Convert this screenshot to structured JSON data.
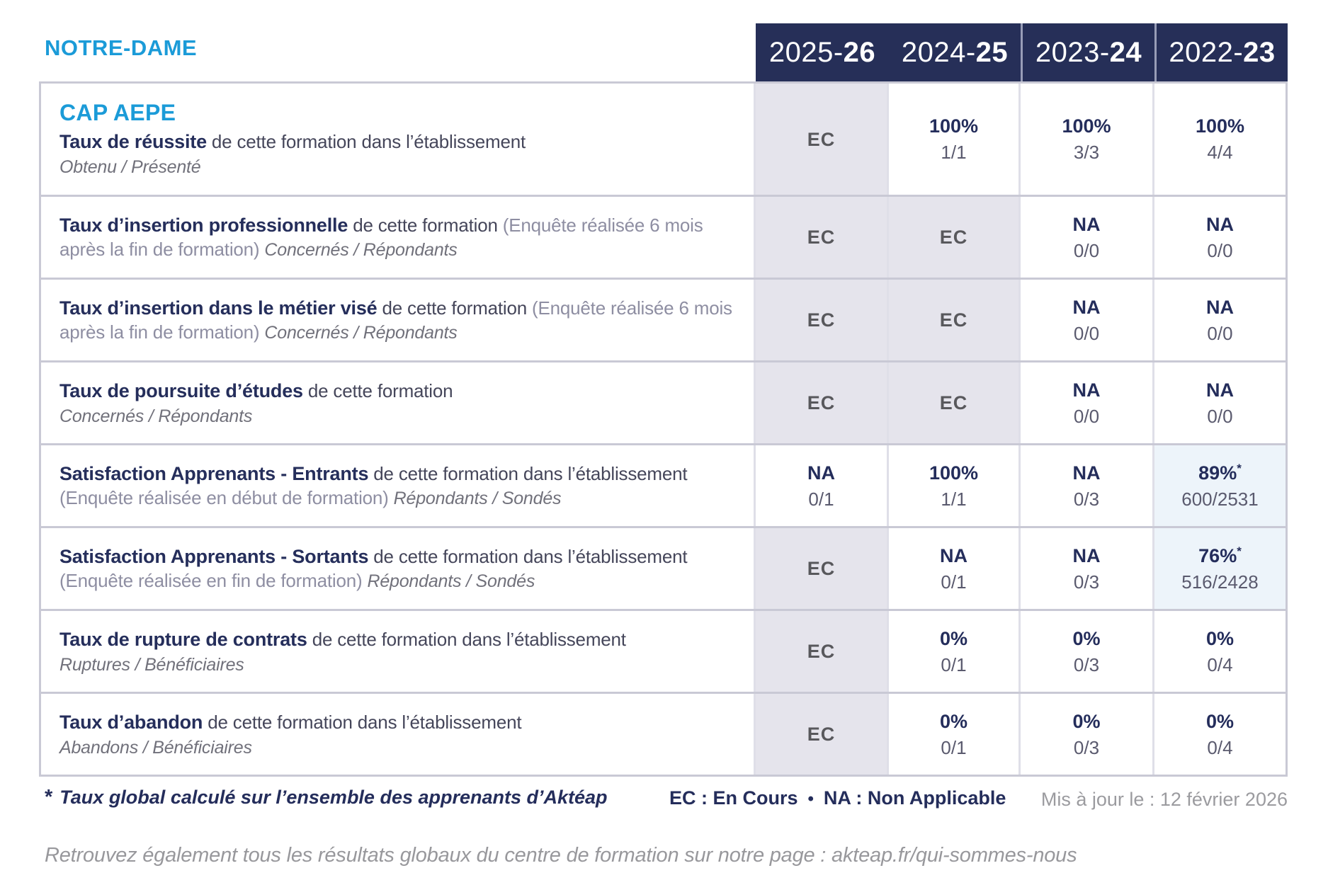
{
  "brand": "NOTRE-DAME",
  "program": "CAP AEPE",
  "years": [
    {
      "start": "2025-",
      "end": "26"
    },
    {
      "start": "2024-",
      "end": "25"
    },
    {
      "start": "2023-",
      "end": "24"
    },
    {
      "start": "2022-",
      "end": "23"
    }
  ],
  "rows": [
    {
      "title": "Taux de réussite",
      "desc": "de cette formation dans l’établissement",
      "sub": "Obtenu / Présenté",
      "cells": [
        {
          "type": "ec",
          "main": "EC"
        },
        {
          "type": "value",
          "main": "100%",
          "sub": "1/1"
        },
        {
          "type": "value",
          "main": "100%",
          "sub": "3/3"
        },
        {
          "type": "value",
          "main": "100%",
          "sub": "4/4"
        }
      ]
    },
    {
      "title": "Taux d’insertion professionnelle",
      "desc": "de cette formation",
      "paren": "(Enquête réalisée 6 mois après la fin de formation)",
      "sub": "Concernés / Répondants",
      "cells": [
        {
          "type": "ec",
          "main": "EC"
        },
        {
          "type": "ec",
          "main": "EC"
        },
        {
          "type": "value",
          "main": "NA",
          "sub": "0/0"
        },
        {
          "type": "value",
          "main": "NA",
          "sub": "0/0"
        }
      ]
    },
    {
      "title": "Taux d’insertion dans le métier visé",
      "desc": "de cette formation",
      "paren": "(Enquête réalisée 6 mois après la fin de formation)",
      "sub": "Concernés / Répondants",
      "cells": [
        {
          "type": "ec",
          "main": "EC"
        },
        {
          "type": "ec",
          "main": "EC"
        },
        {
          "type": "value",
          "main": "NA",
          "sub": "0/0"
        },
        {
          "type": "value",
          "main": "NA",
          "sub": "0/0"
        }
      ]
    },
    {
      "title": "Taux de poursuite d’études",
      "desc": "de cette formation",
      "sub": "Concernés / Répondants",
      "cells": [
        {
          "type": "ec",
          "main": "EC"
        },
        {
          "type": "ec",
          "main": "EC"
        },
        {
          "type": "value",
          "main": "NA",
          "sub": "0/0"
        },
        {
          "type": "value",
          "main": "NA",
          "sub": "0/0"
        }
      ]
    },
    {
      "title": "Satisfaction Apprenants - Entrants",
      "desc": "de cette formation dans l’établissement",
      "paren": "(Enquête réalisée en début de formation)",
      "sub": "Répondants / Sondés",
      "cells": [
        {
          "type": "value",
          "main": "NA",
          "sub": "0/1"
        },
        {
          "type": "value",
          "main": "100%",
          "sub": "1/1"
        },
        {
          "type": "value",
          "main": "NA",
          "sub": "0/3"
        },
        {
          "type": "value-star",
          "main": "89%",
          "star": "*",
          "sub": "600/2531"
        }
      ]
    },
    {
      "title": "Satisfaction Apprenants - Sortants",
      "desc": "de cette formation dans l’établissement",
      "paren": "(Enquête réalisée en fin de formation)",
      "sub": "Répondants / Sondés",
      "cells": [
        {
          "type": "ec",
          "main": "EC"
        },
        {
          "type": "value",
          "main": "NA",
          "sub": "0/1"
        },
        {
          "type": "value",
          "main": "NA",
          "sub": "0/3"
        },
        {
          "type": "value-star",
          "main": "76%",
          "star": "*",
          "sub": "516/2428"
        }
      ]
    },
    {
      "title": "Taux de rupture de contrats",
      "desc": "de cette formation dans l’établissement",
      "sub": "Ruptures / Bénéficiaires",
      "cells": [
        {
          "type": "ec",
          "main": "EC"
        },
        {
          "type": "value",
          "main": "0%",
          "sub": "0/1"
        },
        {
          "type": "value",
          "main": "0%",
          "sub": "0/3"
        },
        {
          "type": "value",
          "main": "0%",
          "sub": "0/4"
        }
      ]
    },
    {
      "title": "Taux d’abandon",
      "desc": "de cette formation dans l’établissement",
      "sub": "Abandons / Bénéficiaires",
      "cells": [
        {
          "type": "ec",
          "main": "EC"
        },
        {
          "type": "value",
          "main": "0%",
          "sub": "0/1"
        },
        {
          "type": "value",
          "main": "0%",
          "sub": "0/3"
        },
        {
          "type": "value",
          "main": "0%",
          "sub": "0/4"
        }
      ]
    }
  ],
  "footer": {
    "star": "*",
    "footnote": "Taux global calculé sur l’ensemble des apprenants d’Aktéap",
    "legend_ec": "EC : En Cours",
    "legend_sep": "•",
    "legend_na": "NA : Non Applicable",
    "updated": "Mis à jour le : 12 février 2026"
  },
  "bottom_note": {
    "text": "Retrouvez également tous les résultats globaux du centre de formation sur notre page : ",
    "url": "akteap.fr/qui-sommes-nous"
  },
  "colors": {
    "accent_cyan": "#1B9BD8",
    "header_navy": "#262F58",
    "text_navy": "#242D5B",
    "ec_cell_bg": "#E5E4EC",
    "starred_cell_bg": "#EDF4FA",
    "border_gray": "#C9C9D5"
  }
}
